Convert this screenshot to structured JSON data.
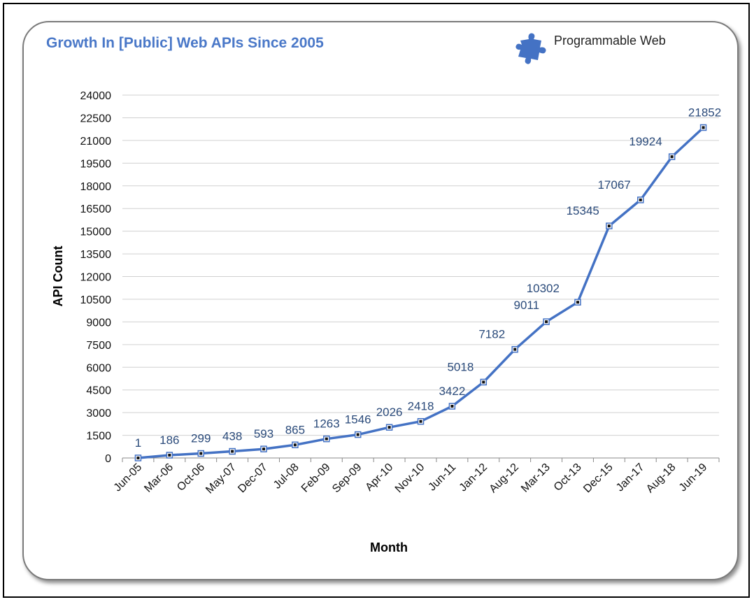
{
  "header": {
    "title": "Growth In [Public] Web APIs Since 2005",
    "brand_label": "Programmable Web",
    "brand_icon": "puzzle-piece-icon"
  },
  "colors": {
    "title": "#4a78c8",
    "line": "#4472c4",
    "marker": "#111111",
    "data_label": "#2a4a7a",
    "grid": "#d0d0d0"
  },
  "chart_data": {
    "type": "line",
    "title": "Growth In [Public] Web APIs Since 2005",
    "xlabel": "Month",
    "ylabel": "API Count",
    "ylim": [
      0,
      24000
    ],
    "yticks": [
      0,
      1500,
      3000,
      4500,
      6000,
      7500,
      9000,
      10500,
      12000,
      13500,
      15000,
      16500,
      18000,
      19500,
      21000,
      22500,
      24000
    ],
    "grid": true,
    "legend": "none",
    "categories": [
      "Jun-05",
      "Mar-06",
      "Oct-06",
      "May-07",
      "Dec-07",
      "Jul-08",
      "Feb-09",
      "Sep-09",
      "Apr-10",
      "Nov-10",
      "Jun-11",
      "Jan-12",
      "Aug-12",
      "Mar-13",
      "Oct-13",
      "Dec-15",
      "Jan-17",
      "Aug-18",
      "Jun-19"
    ],
    "series": [
      {
        "values": [
          1,
          186,
          299,
          438,
          593,
          865,
          1263,
          1546,
          2026,
          2418,
          3422,
          5018,
          7182,
          9011,
          10302,
          15345,
          17067,
          19924,
          21852
        ]
      }
    ]
  }
}
